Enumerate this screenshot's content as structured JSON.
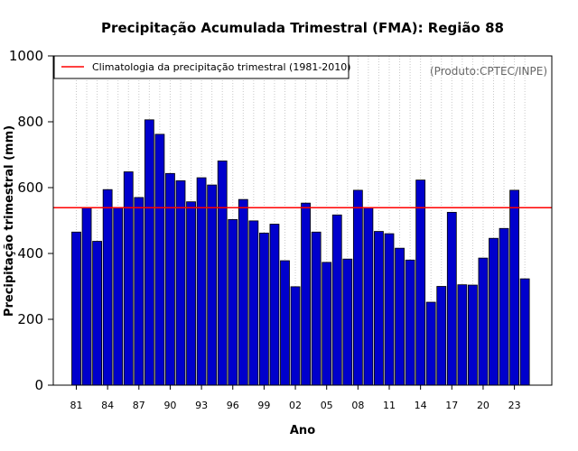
{
  "chart_data": {
    "type": "bar",
    "title": "Precipitação Acumulada Trimestral (FMA): Região 88",
    "xlabel": "Ano",
    "ylabel": "Precipitação trimestral (mm)",
    "credit": "(Produto:CPTEC/INPE)",
    "ylim": [
      0,
      1000
    ],
    "yticks": [
      "0",
      "200",
      "400",
      "600",
      "800",
      "1000"
    ],
    "xtick_labels": [
      "81",
      "84",
      "87",
      "90",
      "93",
      "96",
      "99",
      "02",
      "05",
      "08",
      "11",
      "14",
      "17",
      "20",
      "23"
    ],
    "years": [
      1981,
      1982,
      1983,
      1984,
      1985,
      1986,
      1987,
      1988,
      1989,
      1990,
      1991,
      1992,
      1993,
      1994,
      1995,
      1996,
      1997,
      1998,
      1999,
      2000,
      2001,
      2002,
      2003,
      2004,
      2005,
      2006,
      2007,
      2008,
      2009,
      2010,
      2011,
      2012,
      2013,
      2014,
      2015,
      2016,
      2017,
      2018,
      2019,
      2020,
      2021,
      2022,
      2023,
      2024
    ],
    "values": [
      465,
      538,
      437,
      594,
      538,
      648,
      570,
      806,
      762,
      643,
      621,
      557,
      630,
      608,
      681,
      503,
      564,
      499,
      462,
      489,
      378,
      299,
      553,
      465,
      373,
      517,
      383,
      592,
      539,
      467,
      460,
      416,
      380,
      623,
      252,
      300,
      525,
      305,
      304,
      386,
      446,
      476,
      592,
      323
    ],
    "bar_color": "#0000cc",
    "climatology": {
      "label": "Climatologia da precipitação trimestral (1981-2010)",
      "value": 539,
      "color": "#ff0000"
    },
    "legend_position": "top-left",
    "grid": "vertical dotted"
  }
}
